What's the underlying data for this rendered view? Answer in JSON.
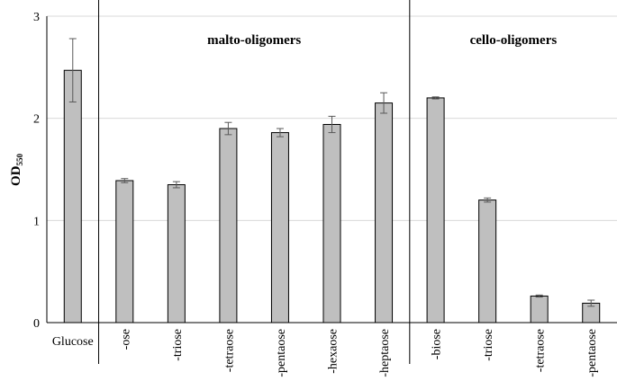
{
  "chart_data": {
    "type": "bar",
    "ylabel": "OD",
    "ylabel_subscript": "550",
    "ylim": [
      0,
      3
    ],
    "yticks": [
      "0",
      "1",
      "2",
      "3"
    ],
    "grid": true,
    "categories": [
      "Glucose",
      "-ose",
      "-triose",
      "-tetraose",
      "-pentaose",
      "-hexaose",
      "-heptaose",
      "-biose",
      "-triose",
      "-tetraose",
      "-pentaose"
    ],
    "values": [
      2.47,
      1.39,
      1.35,
      1.9,
      1.86,
      1.94,
      2.15,
      2.2,
      1.2,
      0.26,
      0.19
    ],
    "errors": [
      0.31,
      0.02,
      0.03,
      0.06,
      0.04,
      0.08,
      0.1,
      0.01,
      0.02,
      0.01,
      0.03
    ],
    "groups": [
      {
        "label": "malto-oligomers",
        "start": 1,
        "end": 6
      },
      {
        "label": "cello-oligomers",
        "start": 7,
        "end": 10
      }
    ],
    "colors": {
      "bar_fill": "#bfbfbf",
      "bar_stroke": "#000000",
      "grid": "#d9d9d9",
      "error": "#595959"
    }
  }
}
